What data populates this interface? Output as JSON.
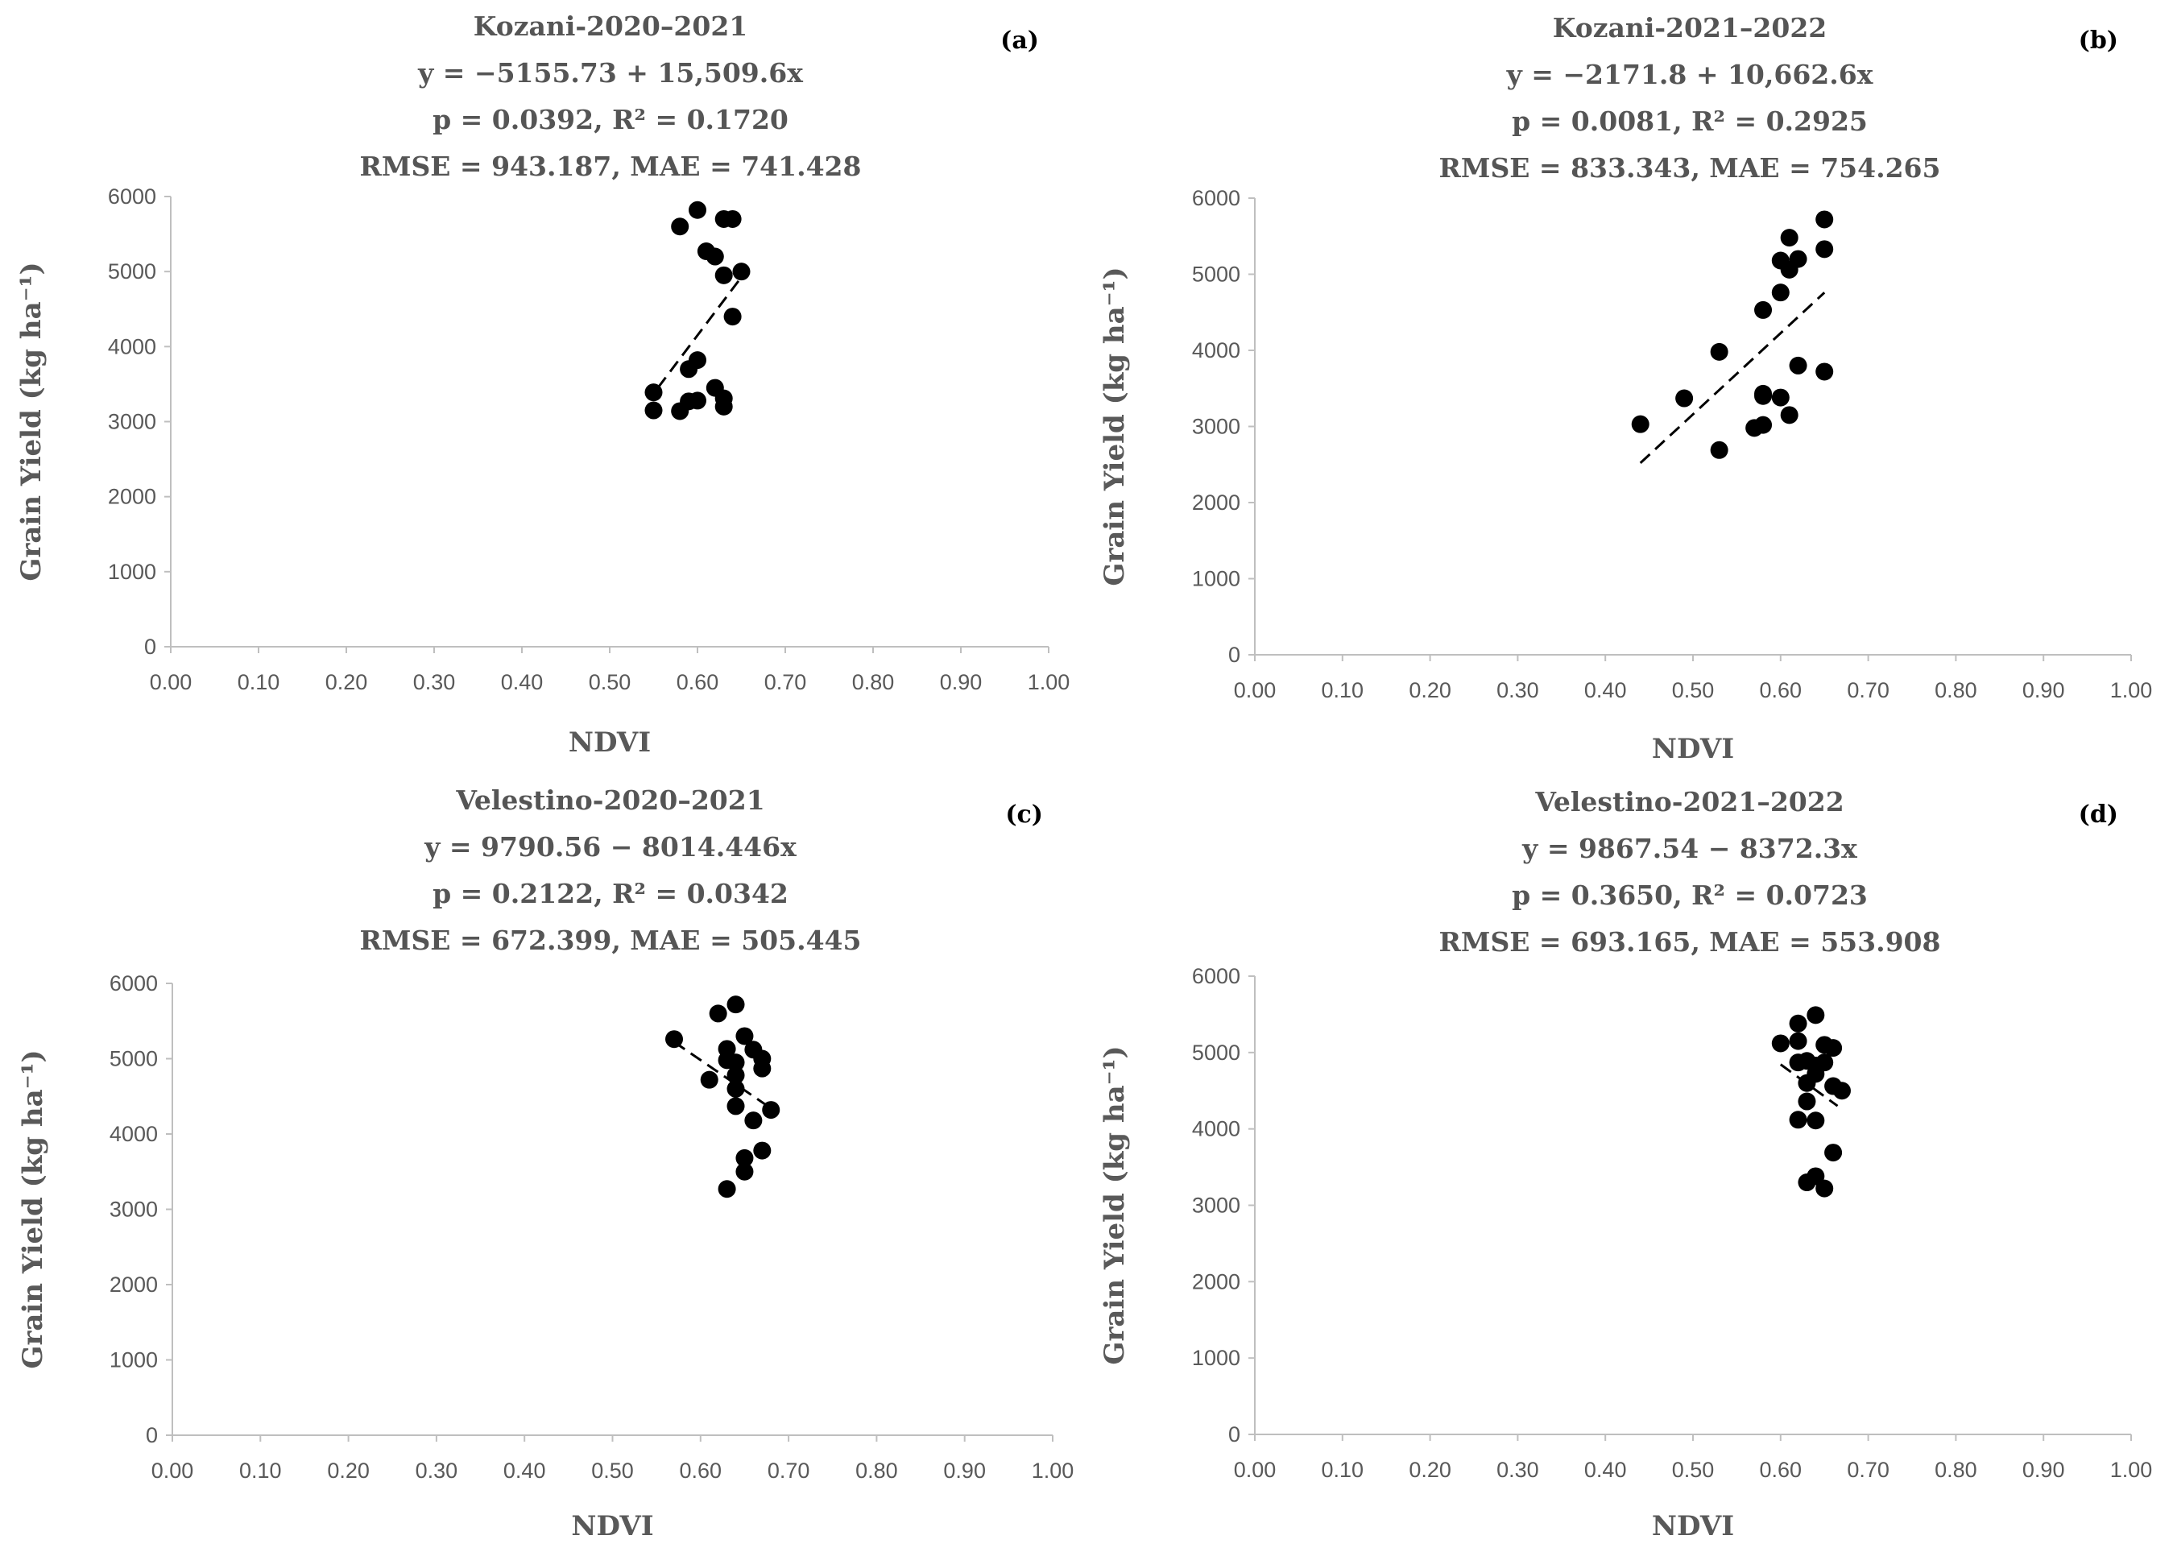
{
  "chart_data": [
    {
      "type": "scatter",
      "panel_label": "(a)",
      "title_lines": [
        "Kozani-2020–2021",
        "y = −5155.73 + 15,509.6x",
        "p = 0.0392, R² = 0.1720",
        "RMSE = 943.187, MAE = 741.428"
      ],
      "xlabel": "NDVI",
      "ylabel": "Grain Yield (kg ha⁻¹)",
      "xlim": [
        0,
        1
      ],
      "ylim": [
        0,
        6000
      ],
      "x_ticks": [
        "0.00",
        "0.10",
        "0.20",
        "0.30",
        "0.40",
        "0.50",
        "0.60",
        "0.70",
        "0.80",
        "0.90",
        "1.00"
      ],
      "y_ticks": [
        "0",
        "1000",
        "2000",
        "3000",
        "4000",
        "5000",
        "6000"
      ],
      "grid": false,
      "trendline": {
        "style": "dashed",
        "intercept": -5155.73,
        "slope": 15509.6,
        "x_range": [
          0.555,
          0.65
        ]
      },
      "points": [
        [
          0.58,
          5600
        ],
        [
          0.6,
          5820
        ],
        [
          0.63,
          5700
        ],
        [
          0.64,
          5700
        ],
        [
          0.61,
          5270
        ],
        [
          0.62,
          5200
        ],
        [
          0.65,
          5000
        ],
        [
          0.63,
          4950
        ],
        [
          0.64,
          4400
        ],
        [
          0.6,
          3820
        ],
        [
          0.59,
          3700
        ],
        [
          0.62,
          3450
        ],
        [
          0.55,
          3390
        ],
        [
          0.63,
          3310
        ],
        [
          0.59,
          3270
        ],
        [
          0.6,
          3280
        ],
        [
          0.58,
          3140
        ],
        [
          0.55,
          3150
        ],
        [
          0.63,
          3200
        ]
      ]
    },
    {
      "type": "scatter",
      "panel_label": "(b)",
      "title_lines": [
        "Kozani-2021–2022",
        "y = −2171.8 + 10,662.6x",
        "p = 0.0081, R² = 0.2925",
        "RMSE = 833.343, MAE = 754.265"
      ],
      "xlabel": "NDVI",
      "ylabel": "Grain Yield (kg ha⁻¹)",
      "xlim": [
        0,
        1
      ],
      "ylim": [
        0,
        6000
      ],
      "x_ticks": [
        "0.00",
        "0.10",
        "0.20",
        "0.30",
        "0.40",
        "0.50",
        "0.60",
        "0.70",
        "0.80",
        "0.90",
        "1.00"
      ],
      "y_ticks": [
        "0",
        "1000",
        "2000",
        "3000",
        "4000",
        "5000",
        "6000"
      ],
      "grid": false,
      "trendline": {
        "style": "dashed",
        "intercept": -2171.8,
        "slope": 10662.6,
        "x_range": [
          0.44,
          0.65
        ]
      },
      "points": [
        [
          0.65,
          5720
        ],
        [
          0.61,
          5480
        ],
        [
          0.65,
          5330
        ],
        [
          0.62,
          5200
        ],
        [
          0.6,
          5180
        ],
        [
          0.61,
          5060
        ],
        [
          0.6,
          4760
        ],
        [
          0.58,
          4530
        ],
        [
          0.53,
          3980
        ],
        [
          0.62,
          3800
        ],
        [
          0.65,
          3720
        ],
        [
          0.58,
          3430
        ],
        [
          0.58,
          3400
        ],
        [
          0.6,
          3380
        ],
        [
          0.49,
          3370
        ],
        [
          0.61,
          3150
        ],
        [
          0.44,
          3030
        ],
        [
          0.58,
          3020
        ],
        [
          0.57,
          2980
        ],
        [
          0.53,
          2690
        ]
      ]
    },
    {
      "type": "scatter",
      "panel_label": "(c)",
      "title_lines": [
        "Velestino-2020–2021",
        "y = 9790.56 − 8014.446x",
        "p = 0.2122, R² = 0.0342",
        "RMSE = 672.399, MAE = 505.445"
      ],
      "xlabel": "NDVI",
      "ylabel": "Grain Yield (kg ha⁻¹)",
      "xlim": [
        0,
        1
      ],
      "ylim": [
        0,
        6000
      ],
      "x_ticks": [
        "0.00",
        "0.10",
        "0.20",
        "0.30",
        "0.40",
        "0.50",
        "0.60",
        "0.70",
        "0.80",
        "0.90",
        "1.00"
      ],
      "y_ticks": [
        "0",
        "1000",
        "2000",
        "3000",
        "4000",
        "5000",
        "6000"
      ],
      "grid": false,
      "trendline": {
        "style": "dashed",
        "intercept": 9790.56,
        "slope": -8014.446,
        "x_range": [
          0.57,
          0.68
        ]
      },
      "points": [
        [
          0.64,
          5720
        ],
        [
          0.62,
          5600
        ],
        [
          0.65,
          5300
        ],
        [
          0.57,
          5260
        ],
        [
          0.66,
          5120
        ],
        [
          0.63,
          5130
        ],
        [
          0.67,
          5000
        ],
        [
          0.63,
          4980
        ],
        [
          0.64,
          4950
        ],
        [
          0.67,
          4870
        ],
        [
          0.64,
          4780
        ],
        [
          0.61,
          4720
        ],
        [
          0.64,
          4600
        ],
        [
          0.64,
          4370
        ],
        [
          0.68,
          4320
        ],
        [
          0.66,
          4180
        ],
        [
          0.67,
          3780
        ],
        [
          0.65,
          3680
        ],
        [
          0.65,
          3500
        ],
        [
          0.63,
          3270
        ]
      ]
    },
    {
      "type": "scatter",
      "panel_label": "(d)",
      "title_lines": [
        "Velestino-2021–2022",
        "y = 9867.54 − 8372.3x",
        "p = 0.3650, R² = 0.0723",
        "RMSE = 693.165, MAE = 553.908"
      ],
      "xlabel": "NDVI",
      "ylabel": "Grain Yield (kg ha⁻¹)",
      "xlim": [
        0,
        1
      ],
      "ylim": [
        0,
        6000
      ],
      "x_ticks": [
        "0.00",
        "0.10",
        "0.20",
        "0.30",
        "0.40",
        "0.50",
        "0.60",
        "0.70",
        "0.80",
        "0.90",
        "1.00"
      ],
      "y_ticks": [
        "0",
        "1000",
        "2000",
        "3000",
        "4000",
        "5000",
        "6000"
      ],
      "grid": false,
      "trendline": {
        "style": "dashed",
        "intercept": 9867.54,
        "slope": -8372.3,
        "x_range": [
          0.6,
          0.665
        ]
      },
      "points": [
        [
          0.64,
          5490
        ],
        [
          0.62,
          5380
        ],
        [
          0.6,
          5120
        ],
        [
          0.62,
          5150
        ],
        [
          0.65,
          5100
        ],
        [
          0.66,
          5060
        ],
        [
          0.63,
          4890
        ],
        [
          0.62,
          4870
        ],
        [
          0.64,
          4830
        ],
        [
          0.65,
          4870
        ],
        [
          0.64,
          4720
        ],
        [
          0.63,
          4600
        ],
        [
          0.66,
          4560
        ],
        [
          0.67,
          4500
        ],
        [
          0.63,
          4360
        ],
        [
          0.62,
          4120
        ],
        [
          0.64,
          4110
        ],
        [
          0.66,
          3690
        ],
        [
          0.64,
          3380
        ],
        [
          0.63,
          3300
        ],
        [
          0.65,
          3220
        ]
      ]
    }
  ]
}
